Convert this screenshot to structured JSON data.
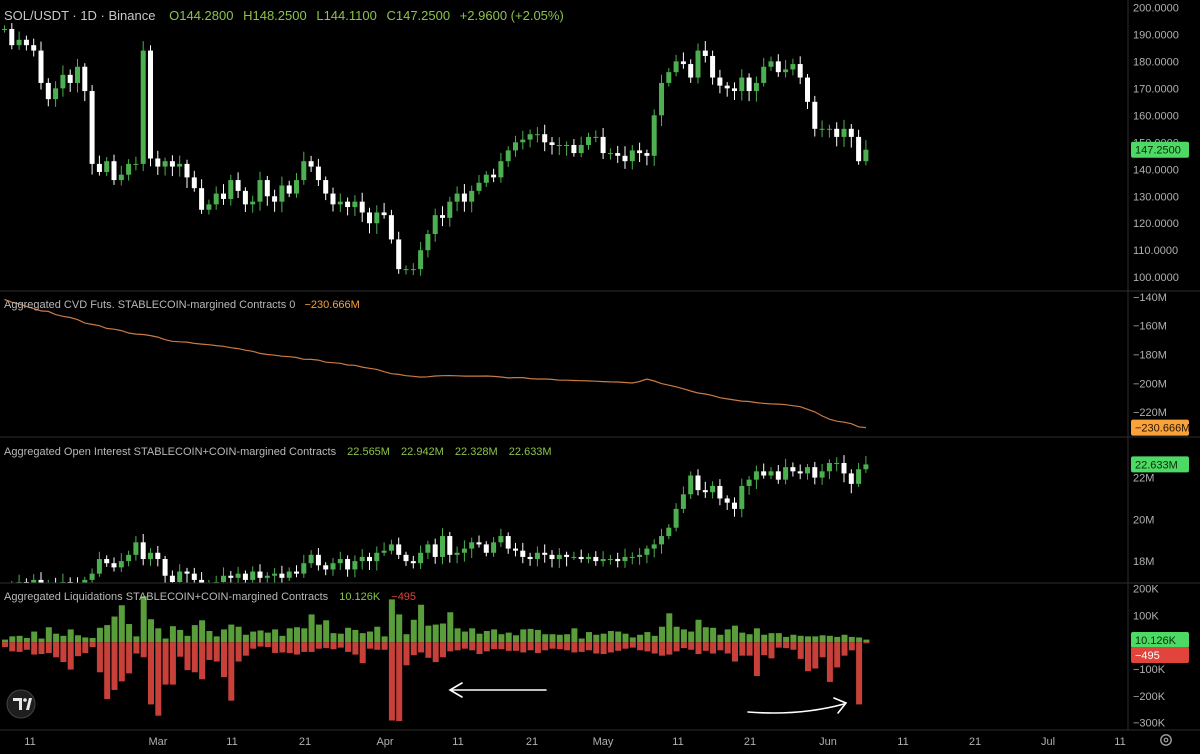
{
  "header": {
    "symbol": "SOL/USDT · 1D · Binance",
    "ohlc": [
      {
        "label": "O",
        "value": "144.2800"
      },
      {
        "label": "H",
        "value": "148.2500"
      },
      {
        "label": "L",
        "value": "144.1100"
      },
      {
        "label": "C",
        "value": "147.2500"
      }
    ],
    "change": "+2.9600 (+2.05%)"
  },
  "colors": {
    "up": "#4caf50",
    "down": "#ffffff",
    "liq_up": "#5a9e3c",
    "liq_down": "#c8403a",
    "cvd_line": "#c97a45",
    "badge_green": "#4cd964",
    "badge_orange": "#f7a23b",
    "badge_red": "#e0443a",
    "grid": "#333333",
    "axis_text": "#b0b0b0"
  },
  "x_axis": {
    "tick_labels": [
      "11",
      "Mar",
      "11",
      "21",
      "Apr",
      "11",
      "21",
      "May",
      "11",
      "21",
      "Jun",
      "11",
      "21",
      "Jul",
      "11"
    ]
  },
  "settings_icon": "gear-icon",
  "logo_icon": "tradingview-logo-icon",
  "chart_data": [
    {
      "type": "candlestick",
      "title": "SOL/USDT · 1D · Binance",
      "y_ticks": [
        "200.0000",
        "190.0000",
        "180.0000",
        "170.0000",
        "160.0000",
        "150.0000",
        "140.0000",
        "130.0000",
        "120.0000",
        "110.0000",
        "100.0000"
      ],
      "ylim": [
        96,
        202
      ],
      "last_value_label": "147.2500",
      "close": [
        192,
        186,
        188,
        186,
        184,
        172,
        166,
        170,
        175,
        172,
        178,
        169,
        142,
        139,
        143,
        136,
        138,
        142,
        142,
        184,
        144,
        141,
        143,
        141,
        142,
        137,
        133,
        125,
        127,
        131,
        129,
        136,
        132,
        127,
        128,
        136,
        130,
        128,
        134,
        131,
        136,
        143,
        141,
        136,
        131,
        127,
        128,
        126,
        128,
        124,
        120,
        124,
        123,
        114,
        103,
        103,
        103,
        110,
        116,
        123,
        122,
        128,
        131,
        128,
        132,
        135,
        138,
        137,
        143,
        147,
        150,
        151,
        153,
        153,
        150,
        149,
        149,
        149,
        146,
        149,
        152,
        152,
        146,
        146,
        145,
        143,
        147,
        146,
        145,
        160,
        172,
        176,
        180,
        179,
        174,
        184,
        182,
        174,
        171,
        170,
        169,
        174,
        169,
        172,
        178,
        180,
        176,
        177,
        179,
        174,
        165,
        155,
        155,
        155,
        152,
        155,
        152,
        143,
        147.25
      ]
    },
    {
      "type": "line",
      "title": "Aggregated CVD Futs. STABLECOIN-margined Contracts 0",
      "current_value": "−230.666M",
      "y_ticks": [
        "−140M",
        "−160M",
        "−180M",
        "−200M",
        "−220M"
      ],
      "ylim": [
        -231,
        -138
      ],
      "y": [
        -141.8,
        -143.7,
        -144.9,
        -146.7,
        -148.1,
        -149.7,
        -150.1,
        -152.3,
        -153.5,
        -154.3,
        -155.8,
        -158.2,
        -159.1,
        -160.0,
        -161.9,
        -162.4,
        -163.4,
        -165.1,
        -165.8,
        -166.1,
        -166.9,
        -167.9,
        -169.7,
        -170.8,
        -171.2,
        -171.4,
        -172.3,
        -172.8,
        -173.2,
        -173.8,
        -174.3,
        -175.3,
        -175.9,
        -177.0,
        -177.8,
        -179.2,
        -180.0,
        -180.5,
        -181.2,
        -181.5,
        -182.1,
        -183.3,
        -183.4,
        -183.9,
        -185.3,
        -185.7,
        -186.1,
        -187.3,
        -187.5,
        -188.7,
        -189.6,
        -190.3,
        -191.9,
        -193.3,
        -193.8,
        -194.7,
        -195.1,
        -195.7,
        -195.5,
        -194.9,
        -194.7,
        -194.6,
        -194.8,
        -195.0,
        -195.0,
        -195.0,
        -194.9,
        -195.2,
        -195.6,
        -196.2,
        -196.0,
        -196.0,
        -196.7,
        -197.0,
        -197.0,
        -197.3,
        -197.8,
        -197.8,
        -198.0,
        -198.2,
        -198.3,
        -198.5,
        -198.8,
        -199.0,
        -199.1,
        -199.4,
        -199.8,
        -198.7,
        -197.0,
        -198.4,
        -200.2,
        -201.3,
        -202.4,
        -203.8,
        -205.3,
        -206.7,
        -207.4,
        -208.5,
        -210.0,
        -210.8,
        -211.6,
        -212.3,
        -212.6,
        -213.4,
        -213.9,
        -214.3,
        -214.4,
        -214.8,
        -215.5,
        -216.2,
        -218.0,
        -219.8,
        -222.6,
        -224.9,
        -226.3,
        -227.0,
        -228.0,
        -230.2,
        -230.7
      ]
    },
    {
      "type": "candlestick",
      "title": "Aggregated Open Interest STABLECOIN+COIN-margined Contracts",
      "ohlc_values": [
        "22.565M",
        "22.942M",
        "22.328M",
        "22.633M"
      ],
      "last_value_label": "22.633M",
      "y_ticks": [
        "22M",
        "20M",
        "18M"
      ],
      "ylim": [
        17.0,
        23.8
      ],
      "close": [
        16.6,
        16.8,
        17.0,
        16.9,
        17.1,
        16.8,
        16.9,
        16.7,
        17.0,
        16.9,
        16.8,
        17.1,
        17.4,
        18.1,
        17.9,
        17.7,
        18.0,
        18.3,
        18.9,
        18.1,
        18.4,
        18.1,
        17.3,
        17.0,
        17.5,
        17.4,
        17.1,
        16.8,
        16.9,
        17.0,
        17.3,
        17.2,
        17.4,
        17.1,
        17.5,
        17.2,
        17.3,
        17.4,
        17.2,
        17.5,
        17.4,
        17.9,
        18.3,
        17.8,
        17.6,
        17.9,
        18.1,
        17.6,
        18.0,
        18.2,
        18.0,
        18.4,
        18.5,
        18.8,
        18.3,
        18.0,
        17.9,
        18.4,
        18.8,
        18.2,
        19.2,
        18.3,
        18.4,
        18.6,
        18.9,
        18.8,
        18.4,
        18.9,
        19.2,
        18.6,
        18.5,
        18.2,
        18.1,
        18.4,
        18.3,
        18.1,
        18.3,
        18.2,
        18.2,
        18.1,
        18.2,
        18.0,
        18.1,
        18.1,
        18.0,
        18.2,
        18.2,
        18.3,
        18.6,
        18.8,
        19.2,
        19.6,
        20.5,
        21.2,
        22.1,
        21.4,
        21.3,
        21.6,
        21.0,
        20.8,
        20.5,
        21.6,
        21.9,
        22.3,
        22.1,
        22.3,
        21.9,
        22.5,
        22.3,
        22.2,
        22.5,
        22.0,
        22.3,
        22.7,
        22.7,
        22.2,
        21.7,
        22.4,
        22.63
      ]
    },
    {
      "type": "bar",
      "title": "Aggregated Liquidations STABLECOIN+COIN-margined Contracts",
      "series_labels": [
        "10.126K",
        "−495"
      ],
      "last_value_labels": [
        "10.126K",
        "−495"
      ],
      "y_ticks": [
        "200K",
        "100K",
        "−100K",
        "−200K",
        "−300K"
      ],
      "ylim": [
        -320,
        210
      ],
      "unit": "K",
      "series": [
        {
          "values": [
            10,
            22,
            24,
            16,
            40,
            14,
            56,
            32,
            24,
            48,
            26,
            18,
            16,
            54,
            64,
            96,
            138,
            68,
            22,
            172,
            86,
            52,
            14,
            60,
            46,
            24,
            64,
            82,
            42,
            22,
            48,
            66,
            58,
            28,
            40,
            44,
            36,
            48,
            24,
            52,
            56,
            52,
            104,
            66,
            82,
            34,
            32,
            54,
            46,
            34,
            40,
            58,
            22,
            160,
            104,
            30,
            84,
            140,
            62,
            66,
            70,
            112,
            52,
            40,
            52,
            32,
            42,
            48,
            30,
            36,
            26,
            48,
            50,
            46,
            30,
            30,
            28,
            30,
            52,
            14,
            38,
            28,
            32,
            42,
            40,
            32,
            18,
            28,
            38,
            24,
            58,
            108,
            58,
            48,
            40,
            84,
            56,
            54,
            28,
            48,
            62,
            36,
            30,
            52,
            28,
            34,
            34,
            20,
            28,
            24,
            22,
            22,
            26,
            24,
            20,
            28,
            20,
            18,
            10
          ]
        },
        {
          "values": [
            -18,
            -34,
            -36,
            -28,
            -46,
            -44,
            -40,
            -56,
            -74,
            -102,
            -52,
            -40,
            -18,
            -112,
            -212,
            -178,
            -146,
            -116,
            -42,
            -56,
            -232,
            -274,
            -158,
            -158,
            -54,
            -104,
            -112,
            -138,
            -66,
            -72,
            -130,
            -218,
            -72,
            -50,
            -24,
            -16,
            -18,
            -40,
            -38,
            -40,
            -46,
            -36,
            -36,
            -24,
            -22,
            -26,
            -20,
            -36,
            -46,
            -78,
            -24,
            -28,
            -28,
            -292,
            -294,
            -86,
            -48,
            -38,
            -58,
            -74,
            -56,
            -34,
            -30,
            -24,
            -30,
            -44,
            -34,
            -26,
            -26,
            -32,
            -32,
            -38,
            -30,
            -40,
            -30,
            -24,
            -26,
            -30,
            -38,
            -36,
            -30,
            -42,
            -44,
            -38,
            -32,
            -24,
            -20,
            -30,
            -34,
            -42,
            -50,
            -46,
            -34,
            -22,
            -28,
            -44,
            -32,
            -42,
            -30,
            -42,
            -72,
            -50,
            -50,
            -126,
            -48,
            -60,
            -20,
            -22,
            -28,
            -62,
            -108,
            -98,
            -56,
            -148,
            -94,
            -50,
            -30,
            -232,
            -2
          ]
        }
      ]
    }
  ]
}
